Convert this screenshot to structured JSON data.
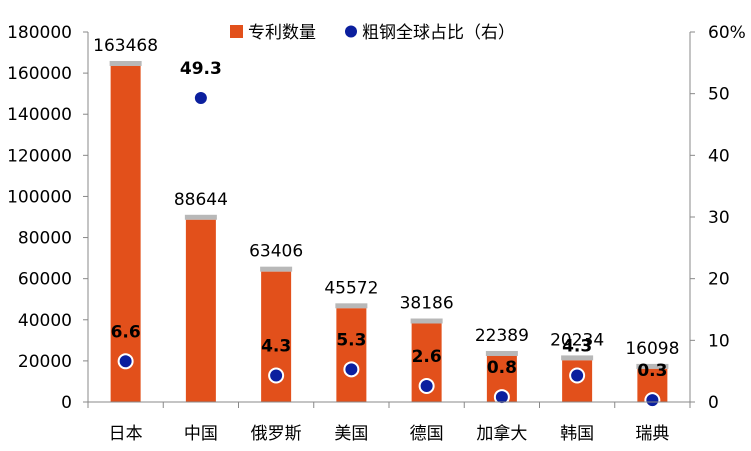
{
  "chart_data": {
    "type": "bar",
    "categories": [
      "日本",
      "中国",
      "俄罗斯",
      "美国",
      "德国",
      "加拿大",
      "韩国",
      "瑞典"
    ],
    "series": [
      {
        "name": "专利数量",
        "type": "bar",
        "axis": "left",
        "color": "#E2501B",
        "values": [
          163468,
          88644,
          63406,
          45572,
          38186,
          22389,
          20234,
          16098
        ]
      },
      {
        "name": "粗钢全球占比（右）",
        "type": "scatter",
        "axis": "right",
        "color": "#0B1F9E",
        "values": [
          6.6,
          49.3,
          4.3,
          5.3,
          2.6,
          0.8,
          4.3,
          0.3
        ]
      }
    ],
    "y_left": {
      "min": 0,
      "max": 180000,
      "step": 20000
    },
    "y_right": {
      "min": 0,
      "max": 60,
      "step": 10,
      "ticks": [
        "0",
        "10",
        "20",
        "30",
        "40",
        "50",
        "60%"
      ]
    },
    "legend_position": "top",
    "grid": false
  }
}
